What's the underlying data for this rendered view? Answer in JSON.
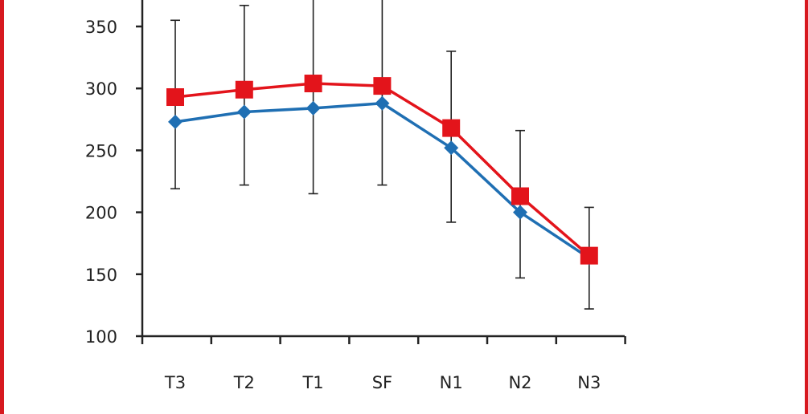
{
  "chart_data": {
    "type": "line",
    "title": "",
    "xlabel": "",
    "ylabel": "",
    "categories": [
      "T3",
      "T2",
      "T1",
      "SF",
      "N1",
      "N2",
      "N3"
    ],
    "ylim": [
      100,
      375
    ],
    "yticks": [
      100,
      150,
      200,
      250,
      300,
      350
    ],
    "grid": false,
    "legend": "none",
    "series": [
      {
        "color": "#e3141b",
        "marker": "square",
        "values": [
          293,
          299,
          304,
          302,
          268,
          213,
          165
        ]
      },
      {
        "color": "#1f6fb3",
        "marker": "diamond",
        "values": [
          273,
          281,
          284,
          288,
          252,
          200,
          163
        ],
        "error_low": [
          219,
          222,
          215,
          222,
          192,
          147,
          122
        ],
        "error_high": [
          355,
          367,
          375,
          372,
          330,
          266,
          204
        ]
      }
    ],
    "colors": {
      "axis": "#222222",
      "error_bar": "#222222",
      "frame": "#d7191f"
    }
  }
}
